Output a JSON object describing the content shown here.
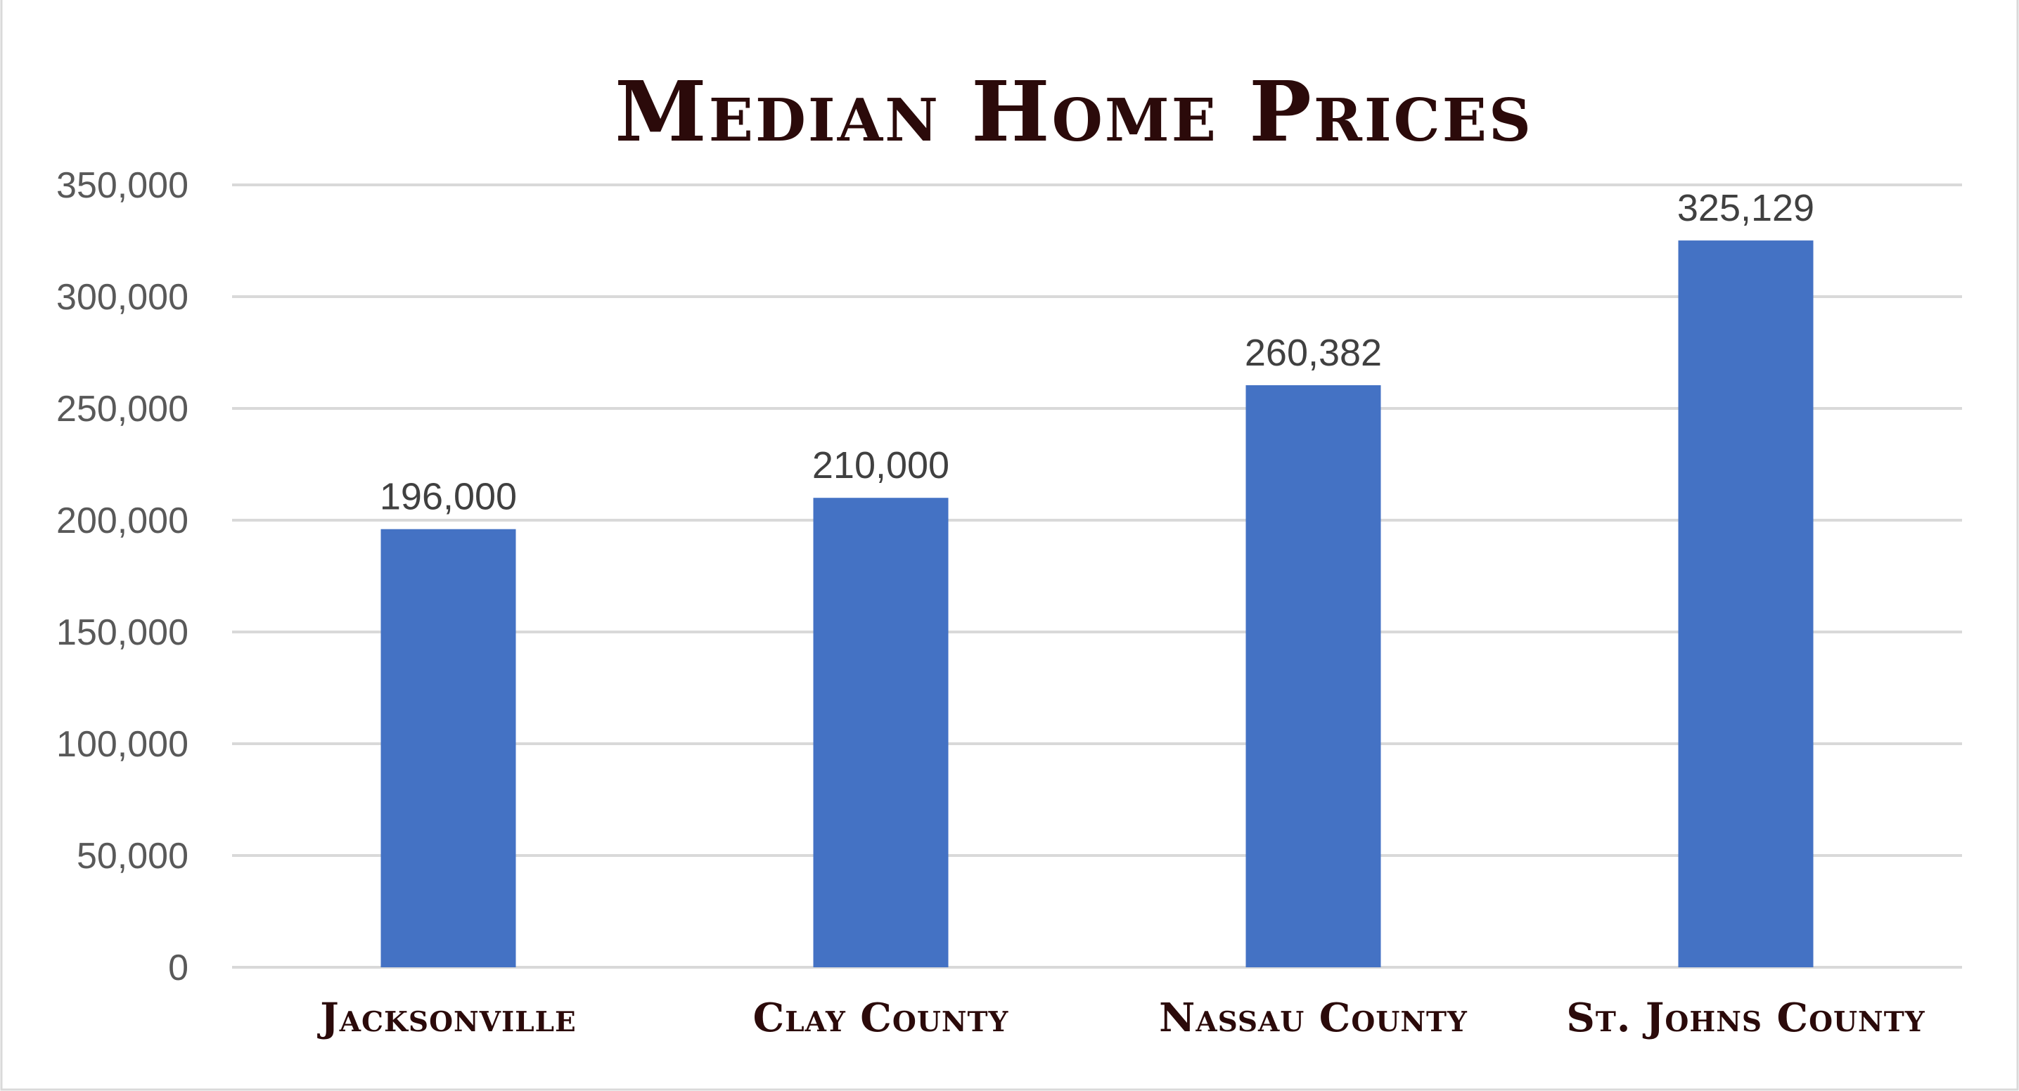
{
  "chart_data": {
    "type": "bar",
    "title": "Median Home Prices",
    "xlabel": "",
    "ylabel": "",
    "categories": [
      "Jacksonville",
      "Clay County",
      "Nassau County",
      "St. Johns County"
    ],
    "values": [
      196000,
      210000,
      260382,
      325129
    ],
    "data_labels": [
      "196,000",
      "210,000",
      "260,382",
      "325,129"
    ],
    "ylim": [
      0,
      350000
    ],
    "yticks": [
      0,
      50000,
      100000,
      150000,
      200000,
      250000,
      300000,
      350000
    ],
    "ytick_labels": [
      "0",
      "50,000",
      "100,000",
      "150,000",
      "200,000",
      "250,000",
      "300,000",
      "350,000"
    ],
    "grid": true,
    "legend": "none",
    "bar_color": "#4472c4",
    "title_color": "#2b0a0a"
  }
}
